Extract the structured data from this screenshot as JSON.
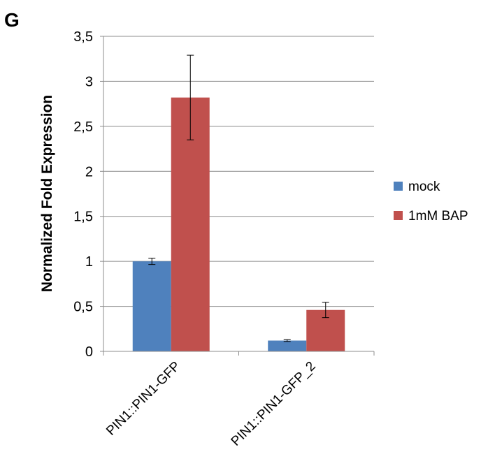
{
  "panel_label": "G",
  "chart_data": {
    "type": "bar",
    "title": "",
    "xlabel": "",
    "ylabel": "Normalized Fold Expression",
    "ylim": [
      0,
      3.5
    ],
    "yticks": [
      "0",
      "0,5",
      "1",
      "1,5",
      "2",
      "2,5",
      "3",
      "3,5"
    ],
    "ytick_values": [
      0,
      0.5,
      1,
      1.5,
      2,
      2.5,
      3,
      3.5
    ],
    "grid": true,
    "legend_position": "right",
    "categories": [
      "PIN1::PIN1-GFP",
      "PIN1::PIN1-GFP_2"
    ],
    "series": [
      {
        "name": "mock",
        "color": "#4F81BD",
        "values": [
          1.0,
          0.12
        ],
        "errors": [
          0.035,
          0.01
        ]
      },
      {
        "name": "1mM BAP",
        "color": "#C0504D",
        "values": [
          2.82,
          0.46
        ],
        "errors": [
          0.47,
          0.085
        ]
      }
    ]
  }
}
